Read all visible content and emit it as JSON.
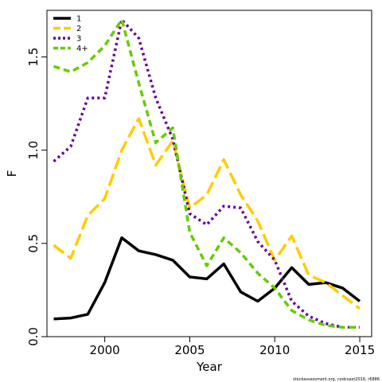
{
  "chart_data": {
    "type": "line",
    "xlabel": "Year",
    "ylabel": "F",
    "xlim": [
      1996.6,
      2015.7
    ],
    "ylim": [
      0.0,
      1.75
    ],
    "x_ticks": [
      2000,
      2005,
      2010,
      2015
    ],
    "y_ticks": [
      0.0,
      0.5,
      1.0,
      1.5
    ],
    "y_tick_labels": [
      "0.0",
      "0.5",
      "1.0",
      "1.5"
    ],
    "x_tick_labels": [
      "2000",
      "2005",
      "2010",
      "2015"
    ],
    "grid": false,
    "legend_position": "top-left",
    "x": [
      1997,
      1998,
      1999,
      2000,
      2001,
      2002,
      2003,
      2004,
      2005,
      2006,
      2007,
      2008,
      2009,
      2010,
      2011,
      2012,
      2013,
      2014,
      2015
    ],
    "series": [
      {
        "name": "1",
        "color": "#000000",
        "dash": "solid",
        "values": [
          0.095,
          0.1,
          0.12,
          0.29,
          0.53,
          0.46,
          0.44,
          0.41,
          0.32,
          0.31,
          0.39,
          0.24,
          0.19,
          0.26,
          0.37,
          0.28,
          0.29,
          0.26,
          0.19
        ]
      },
      {
        "name": "2",
        "color": "#FFCC00",
        "dash": "long",
        "values": [
          0.49,
          0.42,
          0.65,
          0.74,
          1.0,
          1.17,
          0.92,
          1.05,
          0.69,
          0.76,
          0.95,
          0.76,
          0.62,
          0.41,
          0.54,
          0.33,
          0.29,
          0.22,
          0.15
        ]
      },
      {
        "name": "3",
        "color": "#660099",
        "dash": "dotted",
        "values": [
          0.94,
          1.02,
          1.28,
          1.28,
          1.7,
          1.6,
          1.28,
          1.06,
          0.66,
          0.6,
          0.7,
          0.69,
          0.51,
          0.41,
          0.19,
          0.11,
          0.07,
          0.05,
          0.05
        ]
      },
      {
        "name": "4+",
        "color": "#66CC00",
        "dash": "short",
        "values": [
          1.45,
          1.42,
          1.47,
          1.56,
          1.7,
          1.36,
          1.04,
          1.12,
          0.56,
          0.38,
          0.53,
          0.45,
          0.34,
          0.26,
          0.14,
          0.09,
          0.06,
          0.05,
          0.05
        ]
      }
    ],
    "credit": "stockassessment.org, codcoast2016, r6886"
  }
}
